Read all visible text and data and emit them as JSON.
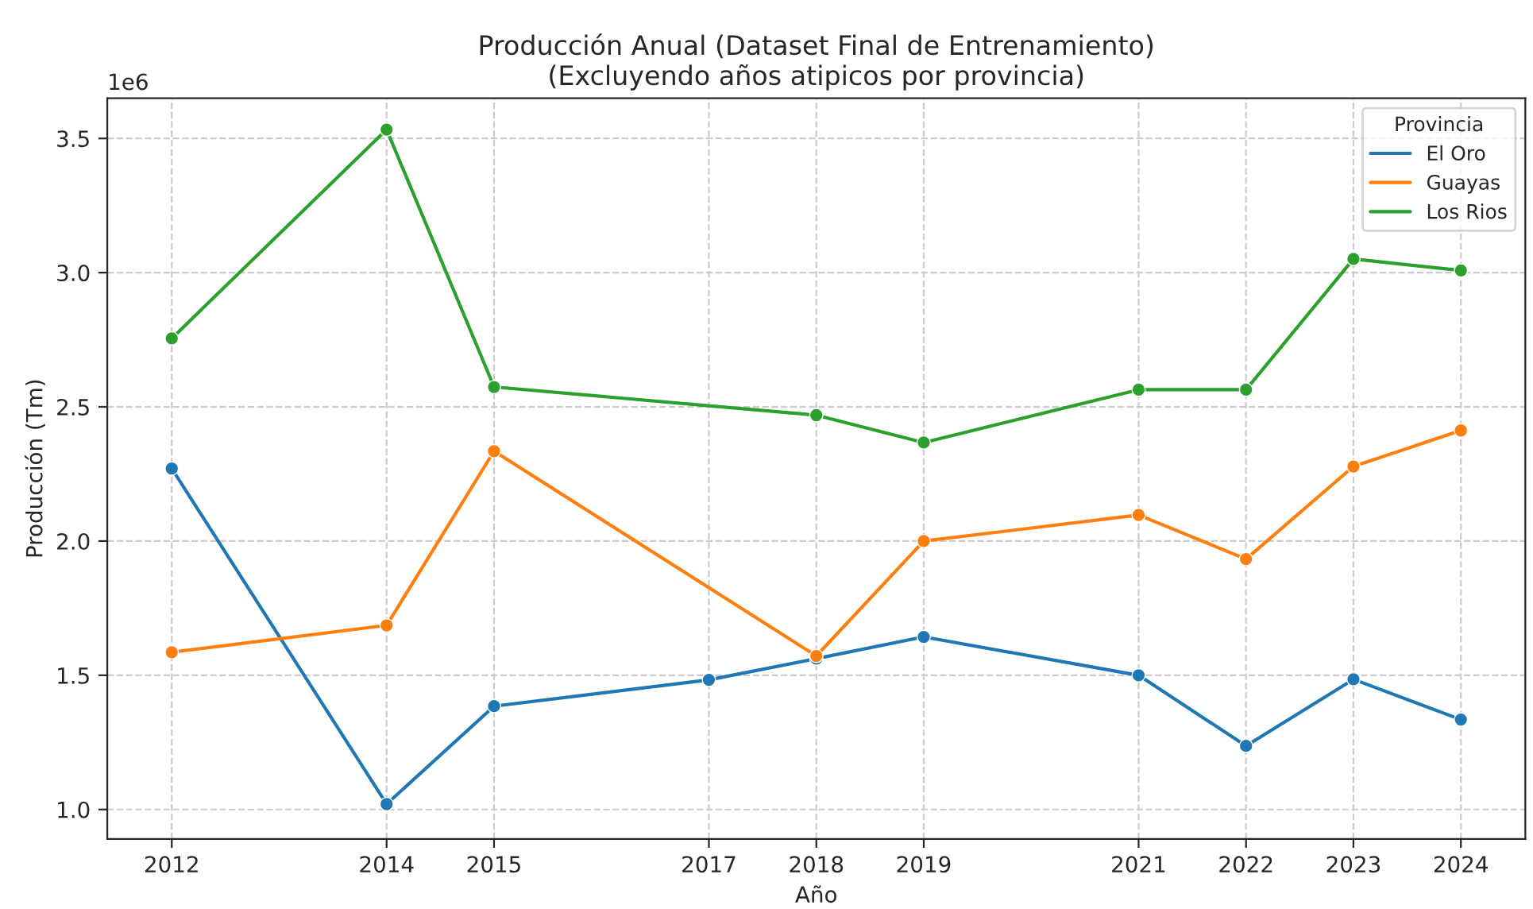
{
  "chart_data": {
    "type": "line",
    "title": "Producción Anual (Dataset Final de Entrenamiento)\n(Excluyendo años atipicos por provincia)",
    "xlabel": "Año",
    "ylabel": "Producción (Tm)",
    "legend_title": "Provincia",
    "annotations": [
      "1e6"
    ],
    "series": [
      {
        "name": "El Oro",
        "color": "#1f77b4",
        "x": [
          2012,
          2014,
          2015,
          2017,
          2018,
          2019,
          2021,
          2022,
          2023,
          2024
        ],
        "values": [
          2.27,
          1.02,
          1.385,
          1.483,
          1.562,
          1.643,
          1.5,
          1.237,
          1.485,
          1.335
        ]
      },
      {
        "name": "Guayas",
        "color": "#ff7f0e",
        "x": [
          2012,
          2014,
          2015,
          2018,
          2019,
          2021,
          2022,
          2023,
          2024
        ],
        "values": [
          1.586,
          1.686,
          2.335,
          1.572,
          2.0,
          2.097,
          1.933,
          2.278,
          2.412
        ]
      },
      {
        "name": "Los Rios",
        "color": "#2ca02c",
        "x": [
          2012,
          2014,
          2015,
          2018,
          2019,
          2021,
          2022,
          2023,
          2024
        ],
        "values": [
          2.755,
          3.533,
          2.574,
          2.469,
          2.367,
          2.564,
          2.564,
          3.051,
          3.008
        ]
      }
    ],
    "xlim": [
      2011.4,
      2024.6
    ],
    "xticks": [
      2012,
      2014,
      2015,
      2017,
      2018,
      2019,
      2021,
      2022,
      2023,
      2024
    ],
    "ylim": [
      0.89,
      3.65
    ],
    "yticks": [
      {
        "value": 1,
        "label": "1.0"
      },
      1.5,
      {
        "value": 2,
        "label": "2.0"
      },
      2.5,
      {
        "value": 3,
        "label": "3.0"
      },
      3.5
    ],
    "grid": true,
    "legend": "top right",
    "marker": "circle",
    "line_style": "solid"
  }
}
